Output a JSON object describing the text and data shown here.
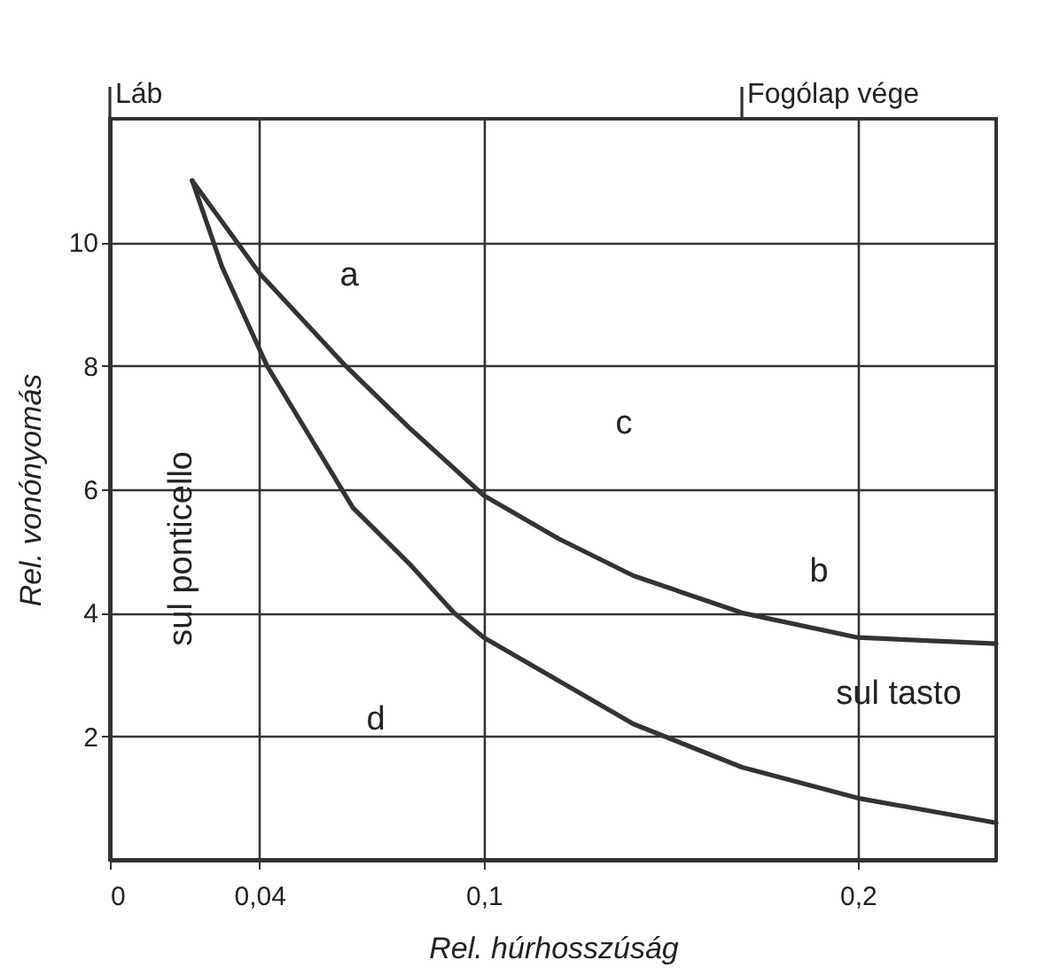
{
  "chart_data": {
    "type": "line",
    "xlabel": "Rel. húrhosszúság",
    "ylabel": "Rel. vonónyomás",
    "xlim": [
      0,
      0.237
    ],
    "ylim": [
      0,
      12
    ],
    "xticks": [
      0,
      {
        "value": 0.04,
        "label": "0,04"
      },
      {
        "value": 0.1,
        "label": "0,1"
      },
      {
        "value": 0.2,
        "label": "0,2"
      }
    ],
    "yticks": [
      2,
      4,
      6,
      8,
      10
    ],
    "grid": true,
    "marker": "none",
    "line_style": "solid",
    "series": [
      {
        "color": "#333333",
        "x": [
          0.022,
          0.04,
          0.063,
          0.08,
          0.1,
          0.12,
          0.14,
          0.169,
          0.2,
          0.237
        ],
        "values": [
          11,
          9.5,
          8,
          7,
          5.9,
          5.2,
          4.6,
          4,
          3.6,
          3.5
        ]
      },
      {
        "color": "#333333",
        "x": [
          0.022,
          0.03,
          0.042,
          0.055,
          0.065,
          0.08,
          0.092,
          0.1,
          0.12,
          0.14,
          0.169,
          0.2,
          0.237
        ],
        "values": [
          11,
          9.6,
          8,
          6.7,
          5.7,
          4.8,
          4,
          3.6,
          2.9,
          2.2,
          1.5,
          1,
          0.6
        ]
      }
    ],
    "ref_lines": [
      {
        "axis": "x",
        "value": 0,
        "label": "Láb"
      },
      {
        "axis": "x",
        "value": 0.169,
        "label": "Fogólap vége"
      }
    ],
    "annotations": [
      "a",
      "b",
      "c",
      "d",
      "sul ponticello",
      "sul tasto"
    ]
  }
}
